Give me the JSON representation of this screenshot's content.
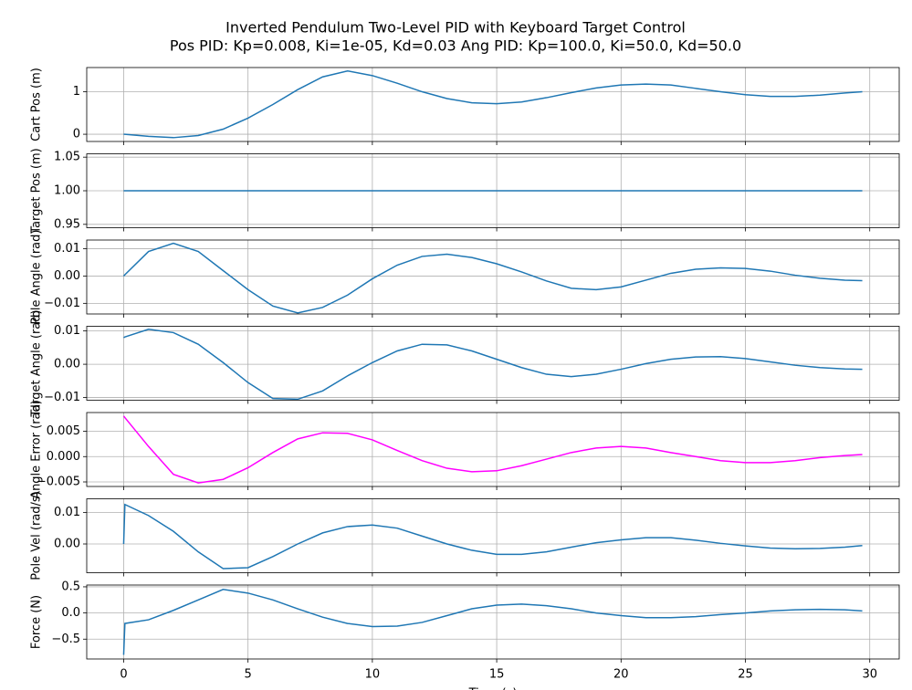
{
  "title": "Inverted Pendulum Two-Level PID with Keyboard Target Control",
  "subtitle": "Pos PID: Kp=0.008, Ki=1e-05, Kd=0.03    Ang PID: Kp=100.0, Ki=50.0, Kd=50.0",
  "chart_data": [
    {
      "type": "line",
      "ylabel": "Cart Pos (m)",
      "grid": true,
      "xlim": [
        -1.485,
        31.185
      ],
      "xticks": [
        0,
        5,
        10,
        15,
        20,
        25,
        30
      ],
      "ylim": [
        -0.17,
        1.57
      ],
      "yticks": [
        0,
        1
      ],
      "x": [
        0,
        0.05,
        1,
        2,
        3,
        4,
        5,
        6,
        7,
        8,
        9,
        10,
        11,
        12,
        13,
        14,
        15,
        16,
        17,
        18,
        19,
        20,
        21,
        22,
        23,
        24,
        25,
        26,
        27,
        28,
        29,
        29.7
      ],
      "series": [
        {
          "color": "#1f77b4",
          "values": [
            0,
            0,
            -0.05,
            -0.08,
            -0.03,
            0.12,
            0.38,
            0.7,
            1.05,
            1.35,
            1.49,
            1.38,
            1.2,
            1.0,
            0.84,
            0.74,
            0.72,
            0.76,
            0.86,
            0.98,
            1.09,
            1.16,
            1.18,
            1.16,
            1.08,
            1.0,
            0.93,
            0.89,
            0.89,
            0.92,
            0.97,
            1.0
          ]
        }
      ]
    },
    {
      "type": "line",
      "ylabel": "Target Pos (m)",
      "grid": true,
      "xlim": [
        -1.485,
        31.185
      ],
      "xticks": [
        0,
        5,
        10,
        15,
        20,
        25,
        30
      ],
      "ylim": [
        0.945,
        1.055
      ],
      "yticks": [
        {
          "value": 0.95,
          "label": "0.95"
        },
        {
          "value": 1,
          "label": "1.00"
        },
        1.05
      ],
      "x": [
        0,
        0.05,
        1,
        2,
        3,
        4,
        5,
        6,
        7,
        8,
        9,
        10,
        11,
        12,
        13,
        14,
        15,
        16,
        17,
        18,
        19,
        20,
        21,
        22,
        23,
        24,
        25,
        26,
        27,
        28,
        29,
        29.7
      ],
      "series": [
        {
          "color": "#1f77b4",
          "values": [
            1,
            1,
            1,
            1,
            1,
            1,
            1,
            1,
            1,
            1,
            1,
            1,
            1,
            1,
            1,
            1,
            1,
            1,
            1,
            1,
            1,
            1,
            1,
            1,
            1,
            1,
            1,
            1,
            1,
            1,
            1,
            1
          ]
        }
      ]
    },
    {
      "type": "line",
      "ylabel": "Pole Angle (rad)",
      "grid": true,
      "xlim": [
        -1.485,
        31.185
      ],
      "xticks": [
        0,
        5,
        10,
        15,
        20,
        25,
        30
      ],
      "ylim": [
        -0.0139,
        0.0132
      ],
      "yticks": [
        {
          "value": -0.01,
          "label": "−0.01"
        },
        {
          "value": 0,
          "label": "0.00"
        },
        0.01
      ],
      "x": [
        0,
        0.05,
        1,
        2,
        3,
        4,
        5,
        6,
        7,
        8,
        9,
        10,
        11,
        12,
        13,
        14,
        15,
        16,
        17,
        18,
        19,
        20,
        21,
        22,
        23,
        24,
        25,
        26,
        27,
        28,
        29,
        29.7
      ],
      "series": [
        {
          "color": "#1f77b4",
          "values": [
            0,
            0.0005,
            0.009,
            0.012,
            0.009,
            0.002,
            -0.005,
            -0.011,
            -0.0135,
            -0.0115,
            -0.007,
            -0.001,
            0.004,
            0.0072,
            0.008,
            0.0068,
            0.0045,
            0.0015,
            -0.0018,
            -0.0045,
            -0.005,
            -0.004,
            -0.0015,
            0.001,
            0.0025,
            0.003,
            0.0028,
            0.0018,
            0.0003,
            -0.0008,
            -0.0015,
            -0.0017
          ]
        }
      ]
    },
    {
      "type": "line",
      "ylabel": "Target Angle (rad)",
      "grid": true,
      "xlim": [
        -1.485,
        31.185
      ],
      "xticks": [
        0,
        5,
        10,
        15,
        20,
        25,
        30
      ],
      "ylim": [
        -0.0108,
        0.0114
      ],
      "yticks": [
        {
          "value": -0.01,
          "label": "−0.01"
        },
        {
          "value": 0,
          "label": "0.00"
        },
        0.01
      ],
      "x": [
        0,
        0.05,
        1,
        2,
        3,
        4,
        5,
        6,
        7,
        8,
        9,
        10,
        11,
        12,
        13,
        14,
        15,
        16,
        17,
        18,
        19,
        20,
        21,
        22,
        23,
        24,
        25,
        26,
        27,
        28,
        29,
        29.7
      ],
      "series": [
        {
          "color": "#1f77b4",
          "values": [
            0.008,
            0.0082,
            0.0105,
            0.0095,
            0.006,
            0.0005,
            -0.0055,
            -0.0103,
            -0.0105,
            -0.008,
            -0.0035,
            0.0005,
            0.004,
            0.006,
            0.0058,
            0.004,
            0.0015,
            -0.001,
            -0.003,
            -0.0037,
            -0.003,
            -0.0015,
            0.0002,
            0.0015,
            0.0022,
            0.0023,
            0.0017,
            0.0007,
            -0.0003,
            -0.001,
            -0.0014,
            -0.0015
          ]
        }
      ]
    },
    {
      "type": "line",
      "ylabel": "Angle Error (rad)",
      "grid": true,
      "xlim": [
        -1.485,
        31.185
      ],
      "xticks": [
        0,
        5,
        10,
        15,
        20,
        25,
        30
      ],
      "ylim": [
        -0.0059,
        0.0087
      ],
      "yticks": [
        {
          "value": -0.005,
          "label": "−0.005"
        },
        {
          "value": 0,
          "label": "0.000"
        },
        0.005
      ],
      "x": [
        0,
        0.05,
        1,
        2,
        3,
        4,
        5,
        6,
        7,
        8,
        9,
        10,
        11,
        12,
        13,
        14,
        15,
        16,
        17,
        18,
        19,
        20,
        21,
        22,
        23,
        24,
        25,
        26,
        27,
        28,
        29,
        29.7
      ],
      "series": [
        {
          "color": "#ff00ff",
          "values": [
            0.008,
            0.0077,
            0.002,
            -0.0035,
            -0.0052,
            -0.0045,
            -0.0022,
            0.0008,
            0.0035,
            0.0047,
            0.0046,
            0.0033,
            0.0012,
            -0.0008,
            -0.0023,
            -0.003,
            -0.0028,
            -0.0018,
            -0.0005,
            0.0008,
            0.0017,
            0.002,
            0.0017,
            0.0008,
            0,
            -0.0008,
            -0.0012,
            -0.0012,
            -0.0008,
            -0.0002,
            0.0002,
            0.0004
          ]
        }
      ]
    },
    {
      "type": "line",
      "ylabel": "Pole Vel (rad/s)",
      "grid": true,
      "xlim": [
        -1.485,
        31.185
      ],
      "xticks": [
        0,
        5,
        10,
        15,
        20,
        25,
        30
      ],
      "ylim": [
        -0.0091,
        0.0143
      ],
      "yticks": [
        {
          "value": 0,
          "label": "0.00"
        },
        0.01
      ],
      "x": [
        0,
        0.05,
        1,
        2,
        3,
        4,
        5,
        6,
        7,
        8,
        9,
        10,
        11,
        12,
        13,
        14,
        15,
        16,
        17,
        18,
        19,
        20,
        21,
        22,
        23,
        24,
        25,
        26,
        27,
        28,
        29,
        29.7
      ],
      "series": [
        {
          "color": "#1f77b4",
          "values": [
            0,
            0.0125,
            0.009,
            0.004,
            -0.0025,
            -0.0078,
            -0.0075,
            -0.004,
            0,
            0.0035,
            0.0055,
            0.006,
            0.005,
            0.0025,
            0,
            -0.002,
            -0.0033,
            -0.0033,
            -0.0025,
            -0.001,
            0.0004,
            0.0013,
            0.002,
            0.002,
            0.0012,
            0.0002,
            -0.0006,
            -0.0013,
            -0.0015,
            -0.0014,
            -0.001,
            -0.0005
          ]
        }
      ]
    },
    {
      "type": "line",
      "ylabel": "Force (N)",
      "xlabel": "Time (s)",
      "grid": true,
      "xlim": [
        -1.485,
        31.185
      ],
      "xticks": [
        0,
        5,
        10,
        15,
        20,
        25,
        30
      ],
      "ylim": [
        -0.879,
        0.534
      ],
      "yticks": [
        {
          "value": -0.5,
          "label": "−0.5"
        },
        {
          "value": 0,
          "label": "0.0"
        },
        0.5
      ],
      "x": [
        0,
        0.05,
        1,
        2,
        3,
        4,
        5,
        6,
        7,
        8,
        9,
        10,
        11,
        12,
        13,
        14,
        15,
        16,
        17,
        18,
        19,
        20,
        21,
        22,
        23,
        24,
        25,
        26,
        27,
        28,
        29,
        29.7
      ],
      "series": [
        {
          "color": "#1f77b4",
          "values": [
            -0.8,
            -0.2,
            -0.13,
            0.05,
            0.25,
            0.45,
            0.38,
            0.25,
            0.08,
            -0.08,
            -0.2,
            -0.26,
            -0.25,
            -0.18,
            -0.05,
            0.08,
            0.15,
            0.17,
            0.14,
            0.08,
            0,
            -0.05,
            -0.09,
            -0.09,
            -0.07,
            -0.03,
            0,
            0.04,
            0.06,
            0.07,
            0.06,
            0.04
          ]
        }
      ]
    }
  ]
}
